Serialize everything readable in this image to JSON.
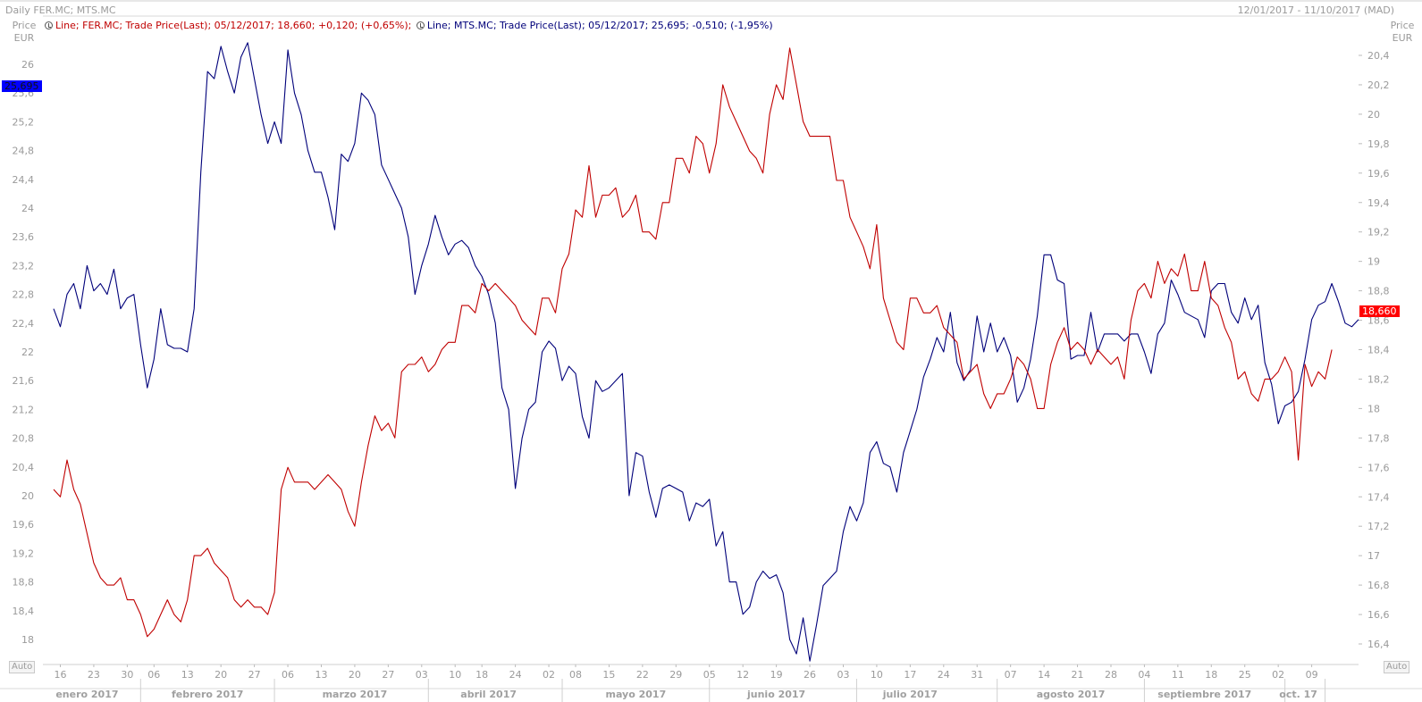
{
  "header": {
    "title": "Daily FER.MC; MTS.MC",
    "range": "12/01/2017 - 11/10/2017 (MAD)"
  },
  "legend": [
    {
      "text": "Line; FER.MC; Trade Price(Last); 05/12/2017; 18,660; +0,120; (+0,65%);",
      "color": "#c00000"
    },
    {
      "text": "Line; MTS.MC; Trade Price(Last); 05/12/2017; 25,695; -0,510; (-1,95%)",
      "color": "#00007a"
    }
  ],
  "axes": {
    "left_unit": [
      "Price",
      "EUR"
    ],
    "right_unit": [
      "Price",
      "EUR"
    ],
    "auto_label": "Auto"
  },
  "tags": {
    "left": {
      "text": "25,695",
      "color": "#0000ff"
    },
    "right": {
      "text": "18,660",
      "color": "#ff0000"
    }
  },
  "chart_data": {
    "type": "line",
    "grid": false,
    "y_left": {
      "range": [
        17.8,
        26.3
      ],
      "ticks": [
        18,
        18.4,
        18.8,
        19.2,
        19.6,
        20,
        20.4,
        20.8,
        21.2,
        21.6,
        22,
        22.4,
        22.8,
        23.2,
        23.6,
        24,
        24.4,
        24.8,
        25.2,
        25.6,
        26
      ],
      "tick_labels": [
        "18",
        "18,4",
        "18,8",
        "19,2",
        "19,6",
        "20",
        "20,4",
        "20,8",
        "21,2",
        "21,6",
        "22",
        "22,4",
        "22,8",
        "23,2",
        "23,6",
        "24",
        "24,4",
        "24,8",
        "25,2",
        "25,6",
        "26"
      ]
    },
    "y_right": {
      "range": [
        16.4,
        20.5
      ],
      "ticks": [
        16.4,
        16.6,
        16.8,
        17,
        17.2,
        17.4,
        17.6,
        17.8,
        18,
        18.2,
        18.4,
        18.6,
        18.8,
        19,
        19.2,
        19.4,
        19.6,
        19.8,
        20,
        20.2,
        20.4
      ],
      "tick_labels": [
        "16,4",
        "16,6",
        "16,8",
        "17",
        "17,2",
        "17,4",
        "17,6",
        "17,8",
        "18",
        "18,2",
        "18,4",
        "18,6",
        "18,8",
        "19",
        "19,2",
        "19,4",
        "19,6",
        "19,8",
        "20",
        "20,2",
        "20,4"
      ]
    },
    "x": {
      "range": [
        0,
        210
      ],
      "day_ticks": [
        {
          "i": 1,
          "label": "16"
        },
        {
          "i": 6,
          "label": "23"
        },
        {
          "i": 11,
          "label": "30"
        },
        {
          "i": 15,
          "label": "06"
        },
        {
          "i": 20,
          "label": "13"
        },
        {
          "i": 25,
          "label": "20"
        },
        {
          "i": 30,
          "label": "27"
        },
        {
          "i": 35,
          "label": "06"
        },
        {
          "i": 40,
          "label": "13"
        },
        {
          "i": 45,
          "label": "20"
        },
        {
          "i": 50,
          "label": "27"
        },
        {
          "i": 55,
          "label": "03"
        },
        {
          "i": 60,
          "label": "10"
        },
        {
          "i": 64,
          "label": "18"
        },
        {
          "i": 69,
          "label": "24"
        },
        {
          "i": 74,
          "label": "02"
        },
        {
          "i": 78,
          "label": "08"
        },
        {
          "i": 83,
          "label": "15"
        },
        {
          "i": 88,
          "label": "22"
        },
        {
          "i": 93,
          "label": "29"
        },
        {
          "i": 98,
          "label": "05"
        },
        {
          "i": 103,
          "label": "12"
        },
        {
          "i": 108,
          "label": "19"
        },
        {
          "i": 113,
          "label": "26"
        },
        {
          "i": 118,
          "label": "03"
        },
        {
          "i": 123,
          "label": "10"
        },
        {
          "i": 128,
          "label": "17"
        },
        {
          "i": 133,
          "label": "24"
        },
        {
          "i": 138,
          "label": "31"
        },
        {
          "i": 143,
          "label": "07"
        },
        {
          "i": 148,
          "label": "14"
        },
        {
          "i": 153,
          "label": "21"
        },
        {
          "i": 158,
          "label": "28"
        },
        {
          "i": 163,
          "label": "04"
        },
        {
          "i": 168,
          "label": "11"
        },
        {
          "i": 173,
          "label": "18"
        },
        {
          "i": 178,
          "label": "25"
        },
        {
          "i": 183,
          "label": "02"
        },
        {
          "i": 188,
          "label": "09"
        }
      ],
      "months": [
        {
          "label": "enero 2017",
          "center": 5,
          "end": 13
        },
        {
          "label": "febrero 2017",
          "center": 23,
          "end": 33
        },
        {
          "label": "marzo 2017",
          "center": 45,
          "end": 56
        },
        {
          "label": "abril 2017",
          "center": 65,
          "end": 76
        },
        {
          "label": "mayo 2017",
          "center": 87,
          "end": 98
        },
        {
          "label": "junio 2017",
          "center": 108,
          "end": 120
        },
        {
          "label": "julio 2017",
          "center": 128,
          "end": 141
        },
        {
          "label": "agosto 2017",
          "center": 152,
          "end": 163
        },
        {
          "label": "septiembre 2017",
          "center": 172,
          "end": 184
        },
        {
          "label": "oct. 17",
          "center": 186,
          "end": 190
        }
      ]
    },
    "series": [
      {
        "name": "MTS.MC",
        "axis": "left",
        "color": "#00007a",
        "values": [
          22.6,
          22.35,
          22.8,
          22.95,
          22.6,
          23.2,
          22.85,
          22.95,
          22.8,
          23.15,
          22.6,
          22.75,
          22.8,
          22.1,
          21.5,
          21.9,
          22.6,
          22.1,
          22.05,
          22.05,
          22.0,
          22.6,
          24.5,
          25.9,
          25.8,
          26.25,
          25.9,
          25.6,
          26.1,
          26.3,
          25.8,
          25.3,
          24.9,
          25.2,
          24.9,
          26.2,
          25.6,
          25.3,
          24.8,
          24.5,
          24.5,
          24.15,
          23.7,
          24.75,
          24.65,
          24.9,
          25.6,
          25.5,
          25.3,
          24.6,
          24.4,
          24.2,
          24.0,
          23.6,
          22.8,
          23.2,
          23.5,
          23.9,
          23.6,
          23.35,
          23.5,
          23.55,
          23.45,
          23.2,
          23.05,
          22.8,
          22.4,
          21.5,
          21.2,
          20.1,
          20.8,
          21.2,
          21.3,
          22.0,
          22.15,
          22.05,
          21.6,
          21.8,
          21.7,
          21.1,
          20.8,
          21.6,
          21.45,
          21.5,
          21.6,
          21.7,
          20.0,
          20.6,
          20.55,
          20.05,
          19.7,
          20.1,
          20.15,
          20.1,
          20.05,
          19.65,
          19.9,
          19.85,
          19.95,
          19.3,
          19.5,
          18.8,
          18.8,
          18.35,
          18.45,
          18.8,
          18.95,
          18.85,
          18.9,
          18.65,
          18.0,
          17.8,
          18.3,
          17.7,
          18.2,
          18.75,
          18.85,
          18.95,
          19.5,
          19.85,
          19.65,
          19.9,
          20.6,
          20.75,
          20.45,
          20.4,
          20.05,
          20.6,
          20.9,
          21.2,
          21.65,
          21.9,
          22.2,
          22.0,
          22.55,
          21.85,
          21.6,
          21.75,
          22.5,
          22.0,
          22.4,
          22.0,
          22.2,
          21.95,
          21.3,
          21.5,
          21.9,
          22.5,
          23.35,
          23.35,
          23.0,
          22.95,
          21.9,
          21.95,
          21.95,
          22.55,
          22.0,
          22.25,
          22.25,
          22.25,
          22.15,
          22.25,
          22.25,
          22.0,
          21.7,
          22.25,
          22.4,
          23.0,
          22.8,
          22.55,
          22.5,
          22.45,
          22.2,
          22.85,
          22.95,
          22.95,
          22.55,
          22.4,
          22.75,
          22.45,
          22.65,
          21.85,
          21.55,
          21.0,
          21.25,
          21.3,
          21.45,
          21.9,
          22.45,
          22.65,
          22.7,
          22.95,
          22.7,
          22.4,
          22.35,
          22.45
        ]
      },
      {
        "name": "FER.MC",
        "axis": "right",
        "color": "#c00000",
        "values": [
          17.45,
          17.4,
          17.65,
          17.45,
          17.35,
          17.15,
          16.95,
          16.85,
          16.8,
          16.8,
          16.85,
          16.7,
          16.7,
          16.6,
          16.45,
          16.5,
          16.6,
          16.7,
          16.6,
          16.55,
          16.7,
          17.0,
          17.0,
          17.05,
          16.95,
          16.9,
          16.85,
          16.7,
          16.65,
          16.7,
          16.65,
          16.65,
          16.6,
          16.75,
          17.45,
          17.6,
          17.5,
          17.5,
          17.5,
          17.45,
          17.5,
          17.55,
          17.5,
          17.45,
          17.3,
          17.2,
          17.5,
          17.75,
          17.95,
          17.85,
          17.9,
          17.8,
          18.25,
          18.3,
          18.3,
          18.35,
          18.25,
          18.3,
          18.4,
          18.45,
          18.45,
          18.7,
          18.7,
          18.65,
          18.85,
          18.8,
          18.85,
          18.8,
          18.75,
          18.7,
          18.6,
          18.55,
          18.5,
          18.75,
          18.75,
          18.65,
          18.95,
          19.05,
          19.35,
          19.3,
          19.65,
          19.3,
          19.45,
          19.45,
          19.5,
          19.3,
          19.35,
          19.45,
          19.2,
          19.2,
          19.15,
          19.4,
          19.4,
          19.7,
          19.7,
          19.6,
          19.85,
          19.8,
          19.6,
          19.8,
          20.2,
          20.05,
          19.95,
          19.85,
          19.75,
          19.7,
          19.6,
          20.0,
          20.2,
          20.1,
          20.45,
          20.2,
          19.95,
          19.85,
          19.85,
          19.85,
          19.85,
          19.55,
          19.55,
          19.3,
          19.2,
          19.1,
          18.95,
          19.25,
          18.75,
          18.6,
          18.45,
          18.4,
          18.75,
          18.75,
          18.65,
          18.65,
          18.7,
          18.55,
          18.5,
          18.45,
          18.2,
          18.25,
          18.3,
          18.1,
          18.0,
          18.1,
          18.1,
          18.2,
          18.35,
          18.3,
          18.2,
          18.0,
          18.0,
          18.3,
          18.45,
          18.55,
          18.4,
          18.45,
          18.4,
          18.3,
          18.4,
          18.35,
          18.3,
          18.35,
          18.2,
          18.6,
          18.8,
          18.85,
          18.75,
          19.0,
          18.85,
          18.95,
          18.9,
          19.05,
          18.8,
          18.8,
          19.0,
          18.75,
          18.7,
          18.55,
          18.45,
          18.2,
          18.25,
          18.1,
          18.05,
          18.2,
          18.2,
          18.25,
          18.35,
          18.25,
          17.65,
          18.3,
          18.15,
          18.25,
          18.2,
          18.4
        ]
      }
    ]
  }
}
